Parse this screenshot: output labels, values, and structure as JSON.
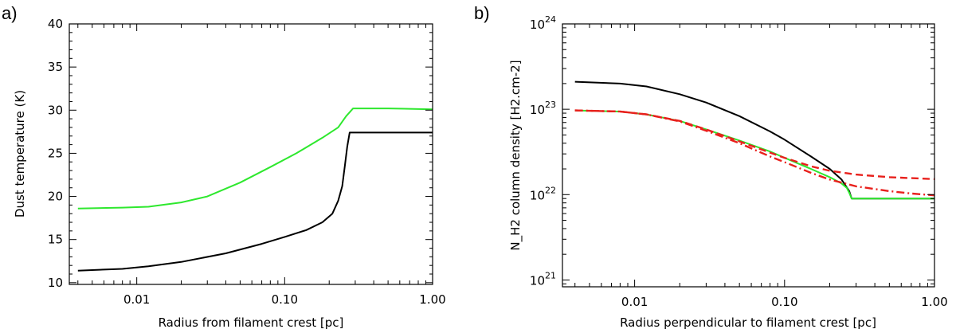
{
  "figure": {
    "panel_a_label": "a)",
    "panel_b_label": "b)"
  },
  "chart_data": [
    {
      "type": "line",
      "panel": "a)",
      "title": "",
      "xlabel": "Radius from filament crest [pc]",
      "ylabel": "Dust temperature (K)",
      "xscale": "log",
      "yscale": "linear",
      "xlim": [
        0.0035,
        1.0
      ],
      "ylim": [
        9.8,
        40
      ],
      "x_ticks": [
        0.01,
        0.1,
        1.0
      ],
      "x_tick_labels": [
        "0.01",
        "0.10",
        "1.00"
      ],
      "y_ticks": [
        10,
        15,
        20,
        25,
        30,
        35,
        40
      ],
      "y_tick_labels": [
        "10",
        "15",
        "20",
        "25",
        "30",
        "35",
        "40"
      ],
      "series": [
        {
          "name": "green",
          "color": "#2ee82e",
          "dash": "solid",
          "x": [
            0.004,
            0.008,
            0.012,
            0.02,
            0.03,
            0.05,
            0.08,
            0.12,
            0.18,
            0.23,
            0.26,
            0.29,
            0.35,
            0.5,
            1.0
          ],
          "y": [
            18.6,
            18.7,
            18.8,
            19.3,
            20.0,
            21.6,
            23.4,
            25.0,
            26.8,
            28.0,
            29.3,
            30.2,
            30.2,
            30.2,
            30.1
          ]
        },
        {
          "name": "black",
          "color": "#000000",
          "dash": "solid",
          "x": [
            0.004,
            0.008,
            0.012,
            0.02,
            0.04,
            0.07,
            0.1,
            0.14,
            0.18,
            0.21,
            0.23,
            0.245,
            0.255,
            0.265,
            0.275,
            0.3,
            0.5,
            1.0
          ],
          "y": [
            11.4,
            11.6,
            11.9,
            12.4,
            13.4,
            14.5,
            15.3,
            16.1,
            17.0,
            18.0,
            19.5,
            21.2,
            23.5,
            25.8,
            27.4,
            27.4,
            27.4,
            27.4
          ]
        }
      ]
    },
    {
      "type": "line",
      "panel": "b)",
      "title": "",
      "xlabel": "Radius perpendicular to filament crest [pc]",
      "ylabel": "N_H2 column density [H2.cm-2]",
      "xscale": "log",
      "yscale": "log",
      "xlim": [
        0.0033,
        1.0
      ],
      "ylim_exp": [
        20.92,
        24
      ],
      "x_ticks": [
        0.01,
        0.1,
        1.0
      ],
      "x_tick_labels": [
        "0.01",
        "0.10",
        "1.00"
      ],
      "y_ticks_exp": [
        21,
        22,
        23,
        24
      ],
      "y_tick_base": "10",
      "y_tick_exponents": [
        "21",
        "22",
        "23",
        "24"
      ],
      "series": [
        {
          "name": "black",
          "color": "#000000",
          "dash": "solid",
          "x": [
            0.004,
            0.008,
            0.012,
            0.02,
            0.03,
            0.05,
            0.08,
            0.1,
            0.15,
            0.2,
            0.24,
            0.27,
            0.28,
            0.3,
            0.5,
            1.0
          ],
          "y": [
            2.1e+23,
            2e+23,
            1.85e+23,
            1.5e+23,
            1.2e+23,
            8.3e+22,
            5.5e+22,
            4.4e+22,
            2.8e+22,
            2e+22,
            1.5e+22,
            1.1e+22,
            9e+21,
            9e+21,
            9e+21,
            9e+21
          ]
        },
        {
          "name": "green",
          "color": "#2ee82e",
          "dash": "solid",
          "x": [
            0.004,
            0.008,
            0.012,
            0.02,
            0.03,
            0.05,
            0.08,
            0.1,
            0.15,
            0.2,
            0.24,
            0.26,
            0.27,
            0.28,
            0.3,
            0.5,
            1.0
          ],
          "y": [
            9.7e+22,
            9.4e+22,
            8.7e+22,
            7.3e+22,
            5.8e+22,
            4.3e+22,
            3.2e+22,
            2.7e+22,
            2e+22,
            1.6e+22,
            1.35e+22,
            1.2e+22,
            1.05e+22,
            9e+21,
            9e+21,
            9e+21,
            9e+21
          ]
        },
        {
          "name": "red-dashed",
          "color": "#e8201c",
          "dash": "dashed",
          "x": [
            0.004,
            0.008,
            0.012,
            0.02,
            0.03,
            0.05,
            0.08,
            0.1,
            0.15,
            0.2,
            0.3,
            0.5,
            0.7,
            1.0
          ],
          "y": [
            9.7e+22,
            9.4e+22,
            8.7e+22,
            7.3e+22,
            5.8e+22,
            4.2e+22,
            3.1e+22,
            2.7e+22,
            2.15e+22,
            1.9e+22,
            1.72e+22,
            1.6e+22,
            1.56e+22,
            1.52e+22
          ]
        },
        {
          "name": "red-dashdot",
          "color": "#e8201c",
          "dash": "dashdot",
          "x": [
            0.004,
            0.008,
            0.012,
            0.02,
            0.03,
            0.05,
            0.08,
            0.1,
            0.15,
            0.2,
            0.3,
            0.5,
            0.7,
            1.0
          ],
          "y": [
            9.7e+22,
            9.4e+22,
            8.7e+22,
            7.2e+22,
            5.6e+22,
            4e+22,
            2.8e+22,
            2.4e+22,
            1.8e+22,
            1.5e+22,
            1.25e+22,
            1.1e+22,
            1.03e+22,
            9.8e+21
          ]
        }
      ]
    }
  ]
}
